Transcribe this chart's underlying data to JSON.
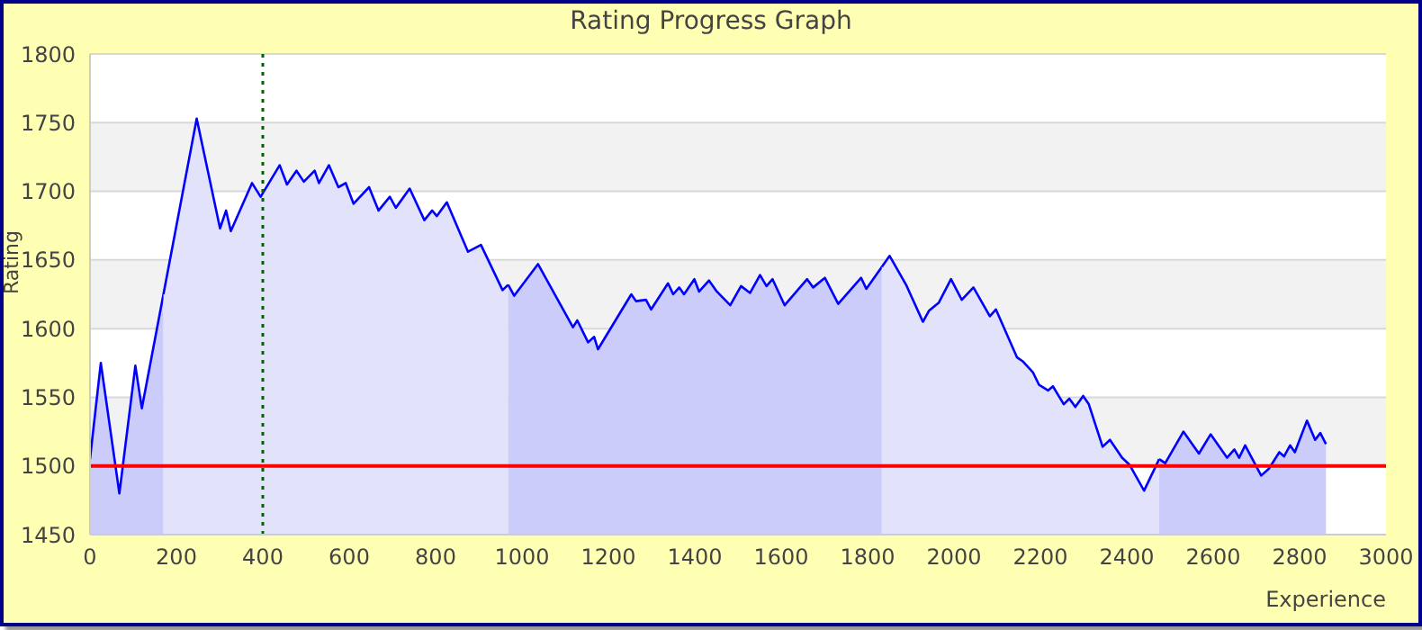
{
  "chart_data": {
    "type": "area",
    "title": "Rating Progress Graph",
    "xlabel": "Experience",
    "ylabel": "Rating",
    "series": [
      {
        "color": "#0000ff",
        "x": [
          0,
          25,
          68,
          105,
          120,
          170
        ],
        "values": [
          1505,
          1575,
          1480,
          1573,
          1542,
          1625
        ]
      },
      {
        "color": "#0000ff",
        "x": [
          170,
          247,
          301,
          315,
          326,
          375,
          395,
          439,
          456,
          478,
          495,
          520,
          530,
          553,
          575,
          592,
          610,
          646,
          668,
          694,
          708,
          740,
          774,
          792,
          803,
          826,
          875,
          905,
          955,
          968
        ],
        "values": [
          1625,
          1753,
          1673,
          1686,
          1671,
          1706,
          1696,
          1719,
          1705,
          1715,
          1707,
          1715,
          1706,
          1719,
          1703,
          1706,
          1691,
          1703,
          1686,
          1696,
          1688,
          1702,
          1679,
          1686,
          1682,
          1692,
          1656,
          1661,
          1628,
          1632
        ]
      },
      {
        "color": "#0000ff",
        "x": [
          968,
          982,
          1037,
          1118,
          1128,
          1153,
          1167,
          1176,
          1253,
          1264,
          1287,
          1299,
          1338,
          1350,
          1364,
          1375,
          1399,
          1410,
          1433,
          1451,
          1482,
          1507,
          1528,
          1551,
          1566,
          1580,
          1608,
          1660,
          1674,
          1701,
          1732,
          1785,
          1797,
          1833
        ],
        "values": [
          1632,
          1624,
          1647,
          1601,
          1606,
          1590,
          1594,
          1585,
          1625,
          1620,
          1621,
          1614,
          1633,
          1625,
          1630,
          1625,
          1636,
          1627,
          1635,
          1627,
          1617,
          1631,
          1626,
          1639,
          1631,
          1636,
          1617,
          1636,
          1630,
          1637,
          1618,
          1637,
          1629,
          1645
        ]
      },
      {
        "color": "#0000ff",
        "x": [
          1833,
          1851,
          1889,
          1928,
          1942,
          1965,
          1993,
          2018,
          2045,
          2083,
          2097,
          2146,
          2160,
          2183,
          2197,
          2218,
          2229,
          2254,
          2267,
          2281,
          2299,
          2312,
          2344,
          2361,
          2389,
          2406,
          2440,
          2475
        ],
        "values": [
          1645,
          1653,
          1632,
          1605,
          1613,
          1619,
          1636,
          1621,
          1630,
          1609,
          1614,
          1579,
          1576,
          1568,
          1559,
          1555,
          1558,
          1545,
          1549,
          1543,
          1551,
          1545,
          1514,
          1519,
          1506,
          1501,
          1482,
          1505
        ]
      },
      {
        "color": "#0000ff",
        "x": [
          2475,
          2489,
          2531,
          2567,
          2594,
          2632,
          2649,
          2660,
          2674,
          2711,
          2729,
          2753,
          2764,
          2778,
          2789,
          2817,
          2836,
          2848,
          2861
        ],
        "values": [
          1505,
          1502,
          1525,
          1509,
          1523,
          1506,
          1512,
          1506,
          1515,
          1493,
          1498,
          1510,
          1507,
          1515,
          1510,
          1533,
          1519,
          1524,
          1516
        ]
      }
    ],
    "xlim": [
      0,
      3000
    ],
    "xticks": [
      0,
      200,
      400,
      600,
      800,
      1000,
      1200,
      1400,
      1600,
      1800,
      2000,
      2200,
      2400,
      2600,
      2800,
      3000
    ],
    "ylim": [
      1450,
      1800
    ],
    "yticks": [
      1450,
      1500,
      1550,
      1600,
      1650,
      1700,
      1750,
      1800
    ],
    "grid": "y",
    "ref_lines": [
      {
        "axis": "y",
        "value": 1500,
        "color": "#ff0000",
        "line_style": "solid"
      },
      {
        "axis": "x",
        "value": 400,
        "color": "#006400",
        "line_style": "dotted"
      }
    ]
  }
}
